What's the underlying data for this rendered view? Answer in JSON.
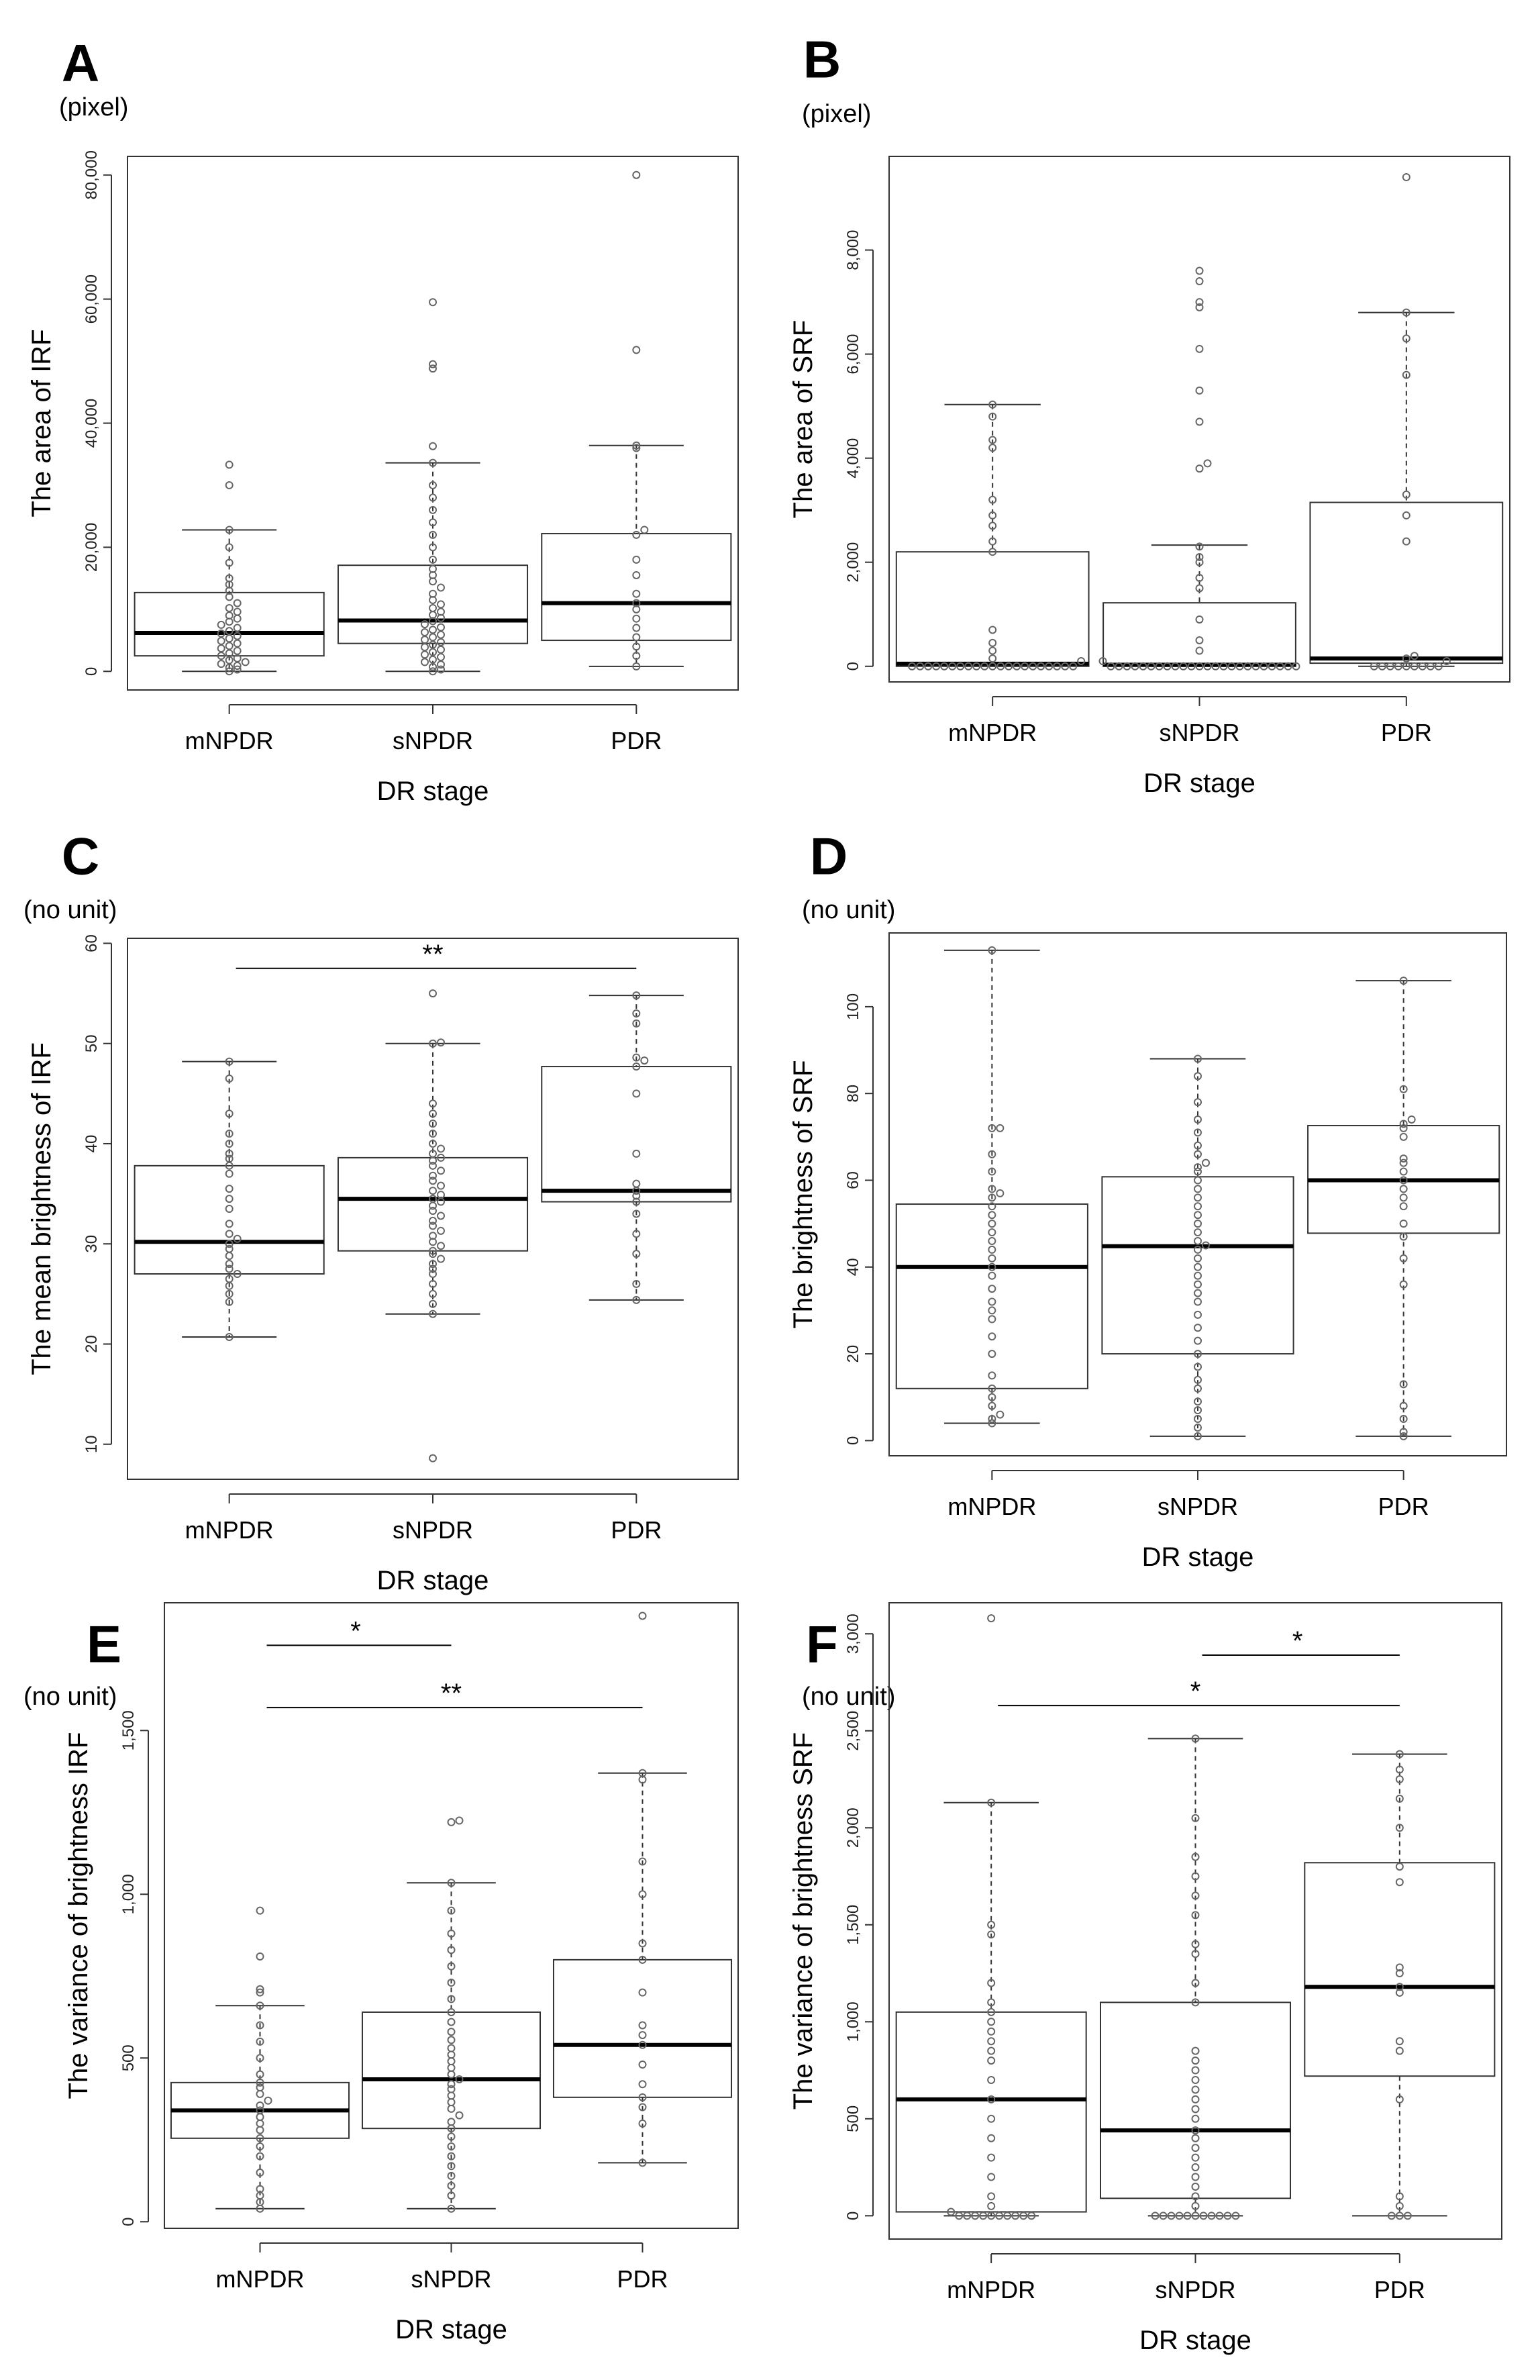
{
  "figure": {
    "panel_count": 6,
    "stroke_color": "#333333",
    "point_color": "#666666",
    "box_fill": "#ffffff"
  },
  "chart_data": [
    {
      "panel": "A",
      "type": "boxplot",
      "unit": "(pixel)",
      "ylabel": "The area of IRF",
      "xlabel": "DR stage",
      "categories": [
        "mNPDR",
        "sNPDR",
        "PDR"
      ],
      "ylim": [
        -3000,
        83000
      ],
      "yticks": [
        {
          "v": 0,
          "t": "0"
        },
        {
          "v": 20000,
          "t": "20,000"
        },
        {
          "v": 40000,
          "t": "40,000"
        },
        {
          "v": 60000,
          "t": "60,000"
        },
        {
          "v": 80000,
          "t": "80,000"
        }
      ],
      "boxes": [
        {
          "min": 0,
          "q1": 2500,
          "median": 6200,
          "q3": 12700,
          "max": 22800
        },
        {
          "min": 0,
          "q1": 4500,
          "median": 8200,
          "q3": 17100,
          "max": 33600
        },
        {
          "min": 800,
          "q1": 5000,
          "median": 11000,
          "q3": 22200,
          "max": 36400
        }
      ],
      "points": [
        [
          0,
          300,
          600,
          900,
          1200,
          1500,
          1800,
          2100,
          2500,
          2900,
          3300,
          3700,
          4100,
          4500,
          4900,
          5300,
          5700,
          6100,
          6500,
          7000,
          7500,
          8000,
          8500,
          9000,
          9600,
          10200,
          11000,
          12000,
          13000,
          14000,
          15000,
          17500,
          20000,
          22800,
          30000,
          33300
        ],
        [
          0,
          300,
          700,
          1100,
          1500,
          1900,
          2300,
          2700,
          3100,
          3500,
          3900,
          4300,
          4700,
          5100,
          5500,
          5900,
          6300,
          6700,
          7100,
          7600,
          8100,
          8600,
          9100,
          9600,
          10200,
          10800,
          11500,
          12500,
          13500,
          14500,
          15500,
          16500,
          18000,
          20000,
          22000,
          24000,
          26000,
          28000,
          30000,
          33600,
          36300,
          48800,
          49500,
          59500
        ],
        [
          800,
          2500,
          4000,
          5500,
          7000,
          8500,
          10000,
          11000,
          12500,
          15500,
          18000,
          22000,
          22800,
          36000,
          36400,
          51800,
          80000
        ]
      ],
      "comparisons": []
    },
    {
      "panel": "B",
      "type": "boxplot",
      "unit": "(pixel)",
      "ylabel": "The area of SRF",
      "xlabel": "DR stage",
      "categories": [
        "mNPDR",
        "sNPDR",
        "PDR"
      ],
      "ylim": [
        -300,
        9800
      ],
      "yticks": [
        {
          "v": 0,
          "t": "0"
        },
        {
          "v": 2000,
          "t": "2,000"
        },
        {
          "v": 4000,
          "t": "4,000"
        },
        {
          "v": 6000,
          "t": "6,000"
        },
        {
          "v": 8000,
          "t": "8,000"
        }
      ],
      "boxes": [
        {
          "min": 0,
          "q1": 0,
          "median": 50,
          "q3": 2200,
          "max": 5030
        },
        {
          "min": 0,
          "q1": 0,
          "median": 30,
          "q3": 1220,
          "max": 2330
        },
        {
          "min": 0,
          "q1": 60,
          "median": 150,
          "q3": 3150,
          "max": 6800
        }
      ],
      "points": [
        [
          0,
          0,
          0,
          0,
          0,
          0,
          0,
          0,
          0,
          0,
          0,
          0,
          0,
          0,
          0,
          0,
          0,
          0,
          0,
          0,
          0,
          100,
          150,
          300,
          450,
          700,
          2200,
          2400,
          2700,
          2900,
          3200,
          4200,
          4350,
          4800,
          5030
        ],
        [
          0,
          0,
          0,
          0,
          0,
          0,
          0,
          0,
          0,
          0,
          0,
          0,
          0,
          0,
          0,
          0,
          0,
          0,
          0,
          0,
          0,
          0,
          0,
          0,
          100,
          300,
          500,
          900,
          1500,
          1700,
          2000,
          2100,
          2300,
          3800,
          3900,
          4700,
          5300,
          6100,
          6900,
          7000,
          7400,
          7600
        ],
        [
          0,
          0,
          0,
          0,
          0,
          0,
          0,
          0,
          0,
          100,
          150,
          200,
          2400,
          2900,
          3300,
          5600,
          6300,
          6800,
          9400
        ]
      ],
      "comparisons": []
    },
    {
      "panel": "C",
      "type": "boxplot",
      "unit": "(no unit)",
      "ylabel": "The mean brightness of IRF",
      "xlabel": "DR stage",
      "categories": [
        "mNPDR",
        "sNPDR",
        "PDR"
      ],
      "ylim": [
        6.5,
        60.5
      ],
      "yticks": [
        {
          "v": 10,
          "t": "10"
        },
        {
          "v": 20,
          "t": "20"
        },
        {
          "v": 30,
          "t": "30"
        },
        {
          "v": 40,
          "t": "40"
        },
        {
          "v": 50,
          "t": "50"
        },
        {
          "v": 60,
          "t": "60"
        }
      ],
      "boxes": [
        {
          "min": 20.7,
          "q1": 27.0,
          "median": 30.2,
          "q3": 37.8,
          "max": 48.2
        },
        {
          "min": 23.0,
          "q1": 29.3,
          "median": 34.5,
          "q3": 38.6,
          "max": 50.0
        },
        {
          "min": 24.4,
          "q1": 34.2,
          "median": 35.3,
          "q3": 47.7,
          "max": 54.8
        }
      ],
      "points": [
        [
          20.7,
          24.2,
          25.0,
          25.8,
          26.5,
          27.0,
          27.5,
          28.0,
          28.8,
          29.5,
          30.0,
          30.5,
          31.0,
          32.0,
          33.5,
          34.5,
          35.5,
          37.0,
          37.8,
          38.5,
          39.0,
          40.0,
          41.0,
          43.0,
          46.5,
          48.2
        ],
        [
          8.6,
          23.0,
          24.0,
          25.0,
          26.0,
          27.0,
          27.5,
          28.0,
          28.5,
          29.0,
          29.3,
          29.8,
          30.2,
          30.8,
          31.3,
          31.8,
          32.3,
          32.8,
          33.3,
          33.8,
          34.2,
          34.5,
          34.9,
          35.3,
          35.8,
          36.3,
          36.8,
          37.3,
          37.8,
          38.3,
          38.6,
          39.0,
          39.5,
          40.0,
          41.0,
          42.0,
          43.0,
          44.0,
          50.0,
          50.1,
          55.0
        ],
        [
          24.4,
          26.0,
          29.0,
          31.0,
          33.0,
          34.2,
          34.8,
          35.3,
          36.0,
          39.0,
          45.0,
          47.7,
          48.3,
          48.6,
          52.0,
          53.0,
          54.8
        ]
      ],
      "comparisons": [
        {
          "from": 0,
          "to": 2,
          "label": "**",
          "y": 57.5
        }
      ]
    },
    {
      "panel": "D",
      "type": "boxplot",
      "unit": "(no unit)",
      "ylabel": "The brightness of SRF",
      "xlabel": "DR stage",
      "categories": [
        "mNPDR",
        "sNPDR",
        "PDR"
      ],
      "ylim": [
        -3.5,
        117
      ],
      "yticks": [
        {
          "v": 0,
          "t": "0"
        },
        {
          "v": 20,
          "t": "20"
        },
        {
          "v": 40,
          "t": "40"
        },
        {
          "v": 60,
          "t": "60"
        },
        {
          "v": 80,
          "t": "80"
        },
        {
          "v": 100,
          "t": "100"
        }
      ],
      "boxes": [
        {
          "min": 4,
          "q1": 12,
          "median": 40,
          "q3": 54.5,
          "max": 113
        },
        {
          "min": 1,
          "q1": 20,
          "median": 44.8,
          "q3": 60.8,
          "max": 88
        },
        {
          "min": 1,
          "q1": 47.8,
          "median": 60,
          "q3": 72.6,
          "max": 106
        }
      ],
      "points": [
        [
          4,
          5,
          6,
          8,
          10,
          12,
          15,
          20,
          24,
          28,
          30,
          32,
          35,
          38,
          40,
          42,
          44,
          46,
          48,
          50,
          52,
          54,
          56,
          57,
          58,
          62,
          66,
          72,
          72,
          113
        ],
        [
          1,
          3,
          5,
          7,
          9,
          12,
          14,
          17,
          20,
          23,
          26,
          29,
          32,
          34,
          36,
          38,
          40,
          42,
          44,
          45,
          46,
          48,
          50,
          52,
          54,
          56,
          58,
          60,
          62,
          63,
          64,
          66,
          68,
          71,
          74,
          78,
          84,
          88
        ],
        [
          1,
          2,
          5,
          8,
          13,
          36,
          42,
          47,
          50,
          54,
          56,
          58,
          60,
          62,
          64,
          65,
          70,
          72,
          73,
          74,
          81,
          106
        ]
      ],
      "comparisons": []
    },
    {
      "panel": "E",
      "type": "boxplot",
      "unit": "(no unit)",
      "ylabel": "The variance of brightness IRF",
      "xlabel": "DR stage",
      "categories": [
        "mNPDR",
        "sNPDR",
        "PDR"
      ],
      "ylim": [
        -20,
        1890
      ],
      "yticks": [
        {
          "v": 0,
          "t": "0"
        },
        {
          "v": 500,
          "t": "500"
        },
        {
          "v": 1000,
          "t": "1,000"
        },
        {
          "v": 1500,
          "t": "1,500"
        }
      ],
      "boxes": [
        {
          "min": 40,
          "q1": 255,
          "median": 340,
          "q3": 425,
          "max": 660
        },
        {
          "min": 40,
          "q1": 285,
          "median": 435,
          "q3": 640,
          "max": 1035
        },
        {
          "min": 180,
          "q1": 380,
          "median": 540,
          "q3": 800,
          "max": 1370
        }
      ],
      "points": [
        [
          40,
          60,
          80,
          100,
          150,
          200,
          230,
          255,
          280,
          300,
          320,
          340,
          355,
          370,
          390,
          410,
          425,
          450,
          500,
          550,
          600,
          660,
          700,
          710,
          810,
          950
        ],
        [
          40,
          80,
          110,
          140,
          170,
          200,
          230,
          260,
          285,
          305,
          325,
          345,
          365,
          385,
          405,
          420,
          435,
          450,
          470,
          490,
          510,
          530,
          555,
          580,
          610,
          640,
          680,
          730,
          780,
          830,
          880,
          950,
          1035,
          1220,
          1225
        ],
        [
          180,
          300,
          350,
          380,
          420,
          480,
          540,
          570,
          600,
          700,
          800,
          850,
          1000,
          1100,
          1350,
          1370,
          1850
        ]
      ],
      "comparisons": [
        {
          "from": 0,
          "to": 1,
          "label": "*",
          "y": 1760
        },
        {
          "from": 0,
          "to": 2,
          "label": "**",
          "y": 1570
        }
      ]
    },
    {
      "panel": "F",
      "type": "boxplot",
      "unit": "(no unit)",
      "ylabel": "The variance of brightness SRF",
      "xlabel": "DR stage",
      "categories": [
        "mNPDR",
        "sNPDR",
        "PDR"
      ],
      "ylim": [
        -120,
        3160
      ],
      "yticks": [
        {
          "v": 0,
          "t": "0"
        },
        {
          "v": 500,
          "t": "500"
        },
        {
          "v": 1000,
          "t": "1,000"
        },
        {
          "v": 1500,
          "t": "1,500"
        },
        {
          "v": 2000,
          "t": "2,000"
        },
        {
          "v": 2500,
          "t": "2,500"
        },
        {
          "v": 3000,
          "t": "3,000"
        }
      ],
      "boxes": [
        {
          "min": 0,
          "q1": 20,
          "median": 600,
          "q3": 1050,
          "max": 2130
        },
        {
          "min": 0,
          "q1": 90,
          "median": 440,
          "q3": 1100,
          "max": 2460
        },
        {
          "min": 0,
          "q1": 720,
          "median": 1180,
          "q3": 1820,
          "max": 2380
        }
      ],
      "points": [
        [
          0,
          0,
          0,
          0,
          0,
          0,
          0,
          0,
          0,
          0,
          20,
          50,
          100,
          200,
          300,
          400,
          500,
          600,
          700,
          800,
          850,
          900,
          950,
          1000,
          1050,
          1100,
          1200,
          1450,
          1500,
          2130,
          3080
        ],
        [
          0,
          0,
          0,
          0,
          0,
          0,
          0,
          0,
          0,
          0,
          0,
          50,
          100,
          150,
          200,
          250,
          300,
          350,
          400,
          440,
          500,
          550,
          600,
          650,
          700,
          750,
          800,
          850,
          1100,
          1200,
          1350,
          1400,
          1550,
          1650,
          1750,
          1850,
          2050,
          2460
        ],
        [
          0,
          0,
          0,
          50,
          100,
          600,
          850,
          900,
          1150,
          1180,
          1250,
          1280,
          1720,
          1800,
          2000,
          2150,
          2250,
          2300,
          2380
        ]
      ],
      "comparisons": [
        {
          "from": 1,
          "to": 2,
          "label": "*",
          "y": 2890
        },
        {
          "from": 0,
          "to": 2,
          "label": "*",
          "y": 2630
        }
      ]
    }
  ]
}
